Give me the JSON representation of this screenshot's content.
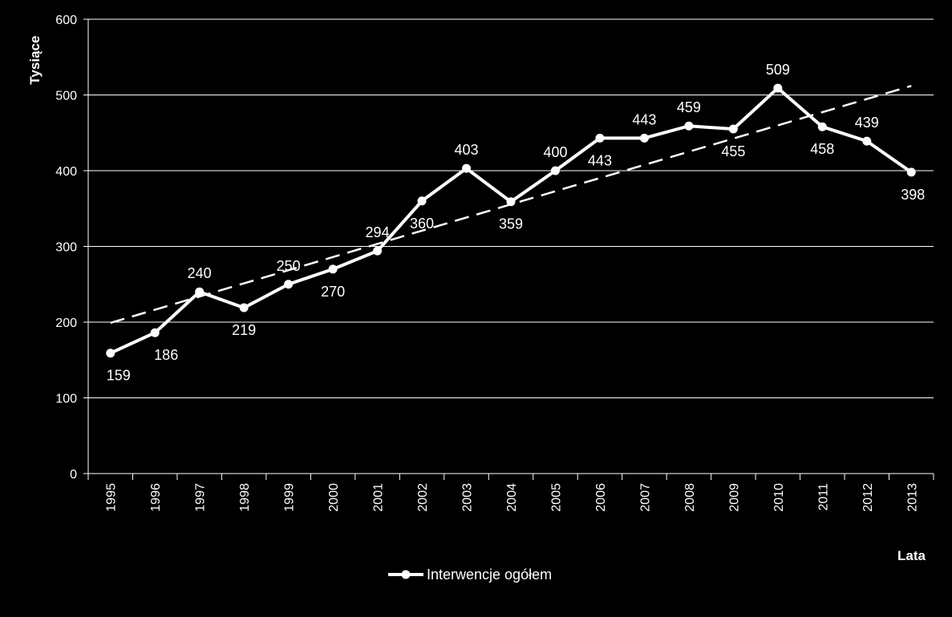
{
  "chart_data": {
    "type": "line",
    "title": "",
    "xlabel": "Lata",
    "ylabel": "Tysiące",
    "ylim": [
      0,
      600
    ],
    "yticks": [
      0,
      100,
      200,
      300,
      400,
      500,
      600
    ],
    "grid": "horizontal",
    "legend_position": "bottom-center",
    "categories": [
      "1995",
      "1996",
      "1997",
      "1998",
      "1999",
      "2000",
      "2001",
      "2002",
      "2003",
      "2004",
      "2005",
      "2006",
      "2007",
      "2008",
      "2009",
      "2010",
      "2011",
      "2012",
      "2013"
    ],
    "series": [
      {
        "name": "Interwencje ogółem",
        "values": [
          159,
          186,
          240,
          219,
          250,
          270,
          294,
          360,
          403,
          359,
          400,
          443,
          443,
          459,
          455,
          509,
          458,
          439,
          398
        ],
        "labels": [
          "159",
          "186",
          "240",
          "219",
          "250",
          "270",
          "294",
          "360",
          "403",
          "359",
          "400",
          "443",
          "443",
          "459",
          "455",
          "509",
          "458",
          "439",
          "398"
        ],
        "color": "#ffffff",
        "marker": "circle"
      }
    ],
    "trendline": {
      "type": "linear",
      "style": "dashed",
      "color": "#ffffff",
      "start_value": 199,
      "end_value": 512
    },
    "background_color": "#000000",
    "grid_color": "#ffffff"
  }
}
